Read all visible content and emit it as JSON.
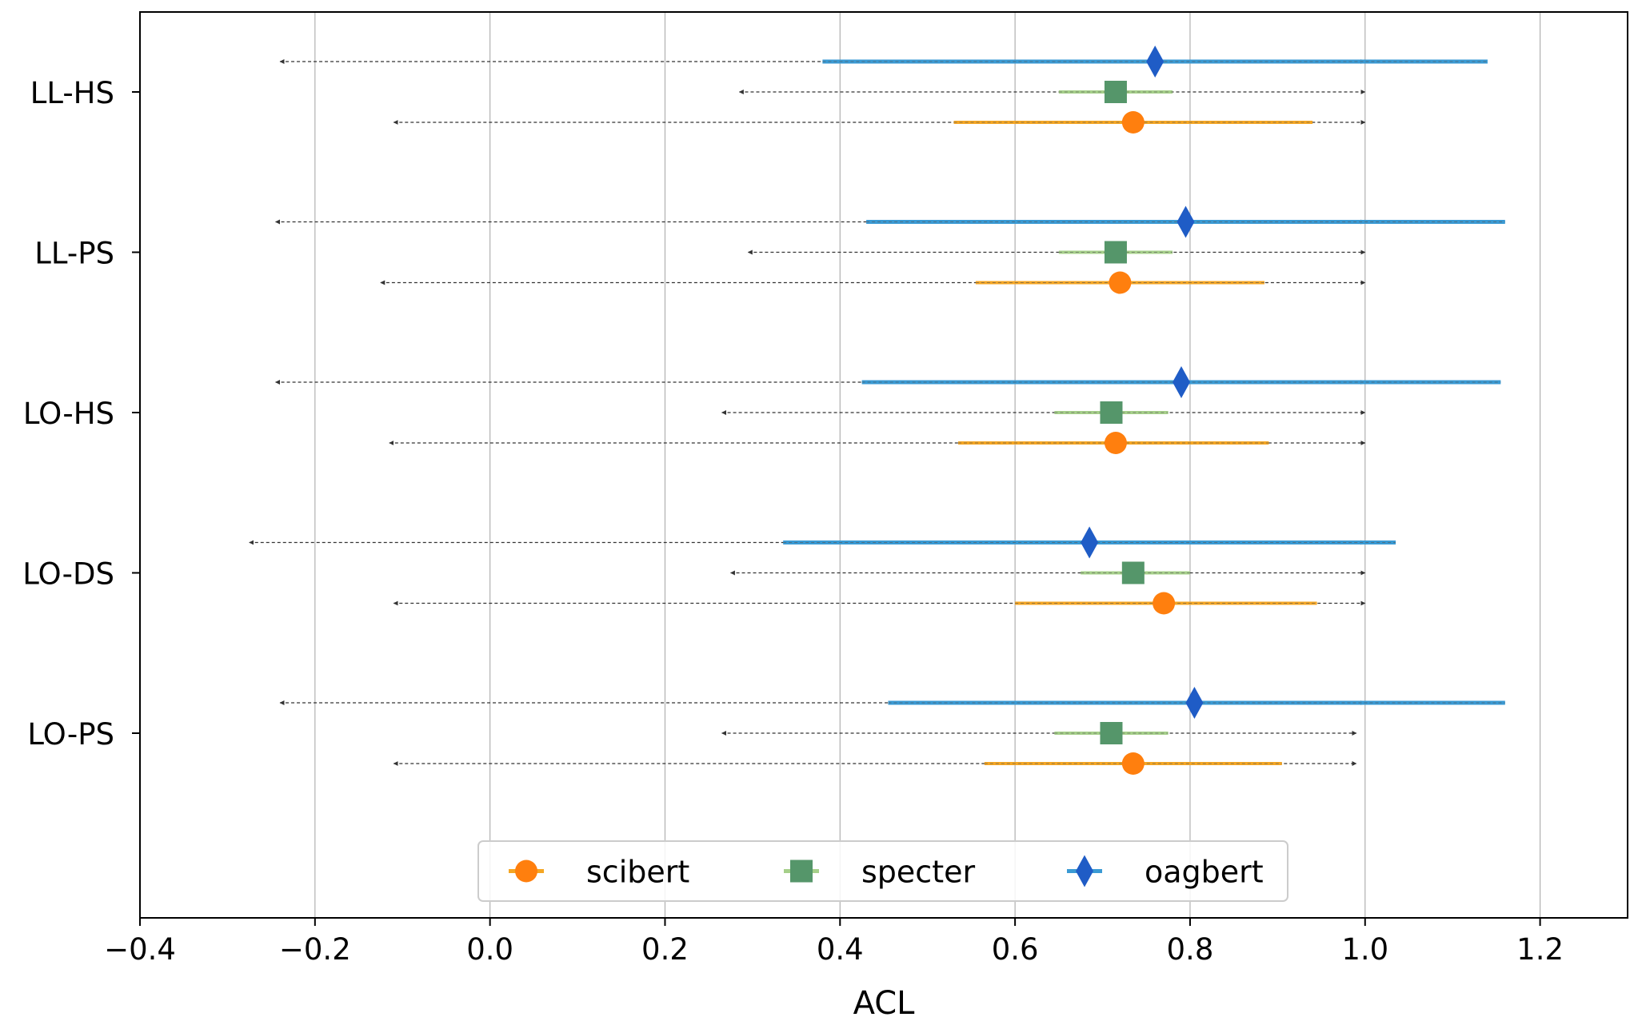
{
  "chart_data": {
    "type": "errorbar",
    "xlabel": "ACL",
    "xlim": [
      -0.4,
      1.3
    ],
    "x_ticks": [
      -0.4,
      -0.2,
      0.0,
      0.2,
      0.4,
      0.6,
      0.8,
      1.0,
      1.2
    ],
    "x_tick_labels": [
      "−0.4",
      "−0.2",
      "0.0",
      "0.2",
      "0.4",
      "0.6",
      "0.8",
      "1.0",
      "1.2"
    ],
    "grid": "vertical",
    "legend_position": "bottom-center",
    "categories": [
      "LL-HS",
      "LL-PS",
      "LO-HS",
      "LO-DS",
      "LO-PS"
    ],
    "series": [
      {
        "name": "scibert",
        "color": "#ff7f0e",
        "bar_color": "#f5a623",
        "marker": "circle",
        "points": [
          {
            "category": "LL-HS",
            "value": 0.735,
            "ci": [
              0.53,
              0.94
            ],
            "range": [
              -0.11,
              1.0
            ]
          },
          {
            "category": "LL-PS",
            "value": 0.72,
            "ci": [
              0.555,
              0.885
            ],
            "range": [
              -0.125,
              1.0
            ]
          },
          {
            "category": "LO-HS",
            "value": 0.715,
            "ci": [
              0.535,
              0.89
            ],
            "range": [
              -0.115,
              1.0
            ]
          },
          {
            "category": "LO-DS",
            "value": 0.77,
            "ci": [
              0.6,
              0.945
            ],
            "range": [
              -0.11,
              1.0
            ]
          },
          {
            "category": "LO-PS",
            "value": 0.735,
            "ci": [
              0.565,
              0.905
            ],
            "range": [
              -0.11,
              0.99
            ]
          }
        ]
      },
      {
        "name": "specter",
        "color": "#55966a",
        "bar_color": "#a6d08a",
        "marker": "square",
        "points": [
          {
            "category": "LL-HS",
            "value": 0.715,
            "ci": [
              0.65,
              0.78
            ],
            "range": [
              0.285,
              1.0
            ]
          },
          {
            "category": "LL-PS",
            "value": 0.715,
            "ci": [
              0.65,
              0.78
            ],
            "range": [
              0.295,
              1.0
            ]
          },
          {
            "category": "LO-HS",
            "value": 0.71,
            "ci": [
              0.645,
              0.775
            ],
            "range": [
              0.265,
              1.0
            ]
          },
          {
            "category": "LO-DS",
            "value": 0.735,
            "ci": [
              0.675,
              0.8
            ],
            "range": [
              0.275,
              1.0
            ]
          },
          {
            "category": "LO-PS",
            "value": 0.71,
            "ci": [
              0.645,
              0.775
            ],
            "range": [
              0.265,
              0.99
            ]
          }
        ]
      },
      {
        "name": "oagbert",
        "color": "#1f5cc6",
        "bar_color": "#3a9ad4",
        "marker": "diamond",
        "points": [
          {
            "category": "LL-HS",
            "value": 0.76,
            "ci": [
              0.38,
              1.14
            ],
            "range": [
              -0.24,
              1.0
            ]
          },
          {
            "category": "LL-PS",
            "value": 0.795,
            "ci": [
              0.43,
              1.16
            ],
            "range": [
              -0.245,
              1.0
            ]
          },
          {
            "category": "LO-HS",
            "value": 0.79,
            "ci": [
              0.425,
              1.155
            ],
            "range": [
              -0.245,
              1.0
            ]
          },
          {
            "category": "LO-DS",
            "value": 0.685,
            "ci": [
              0.335,
              1.035
            ],
            "range": [
              -0.275,
              1.0
            ]
          },
          {
            "category": "LO-PS",
            "value": 0.805,
            "ci": [
              0.455,
              1.16
            ],
            "range": [
              -0.24,
              1.0
            ]
          }
        ]
      }
    ]
  }
}
